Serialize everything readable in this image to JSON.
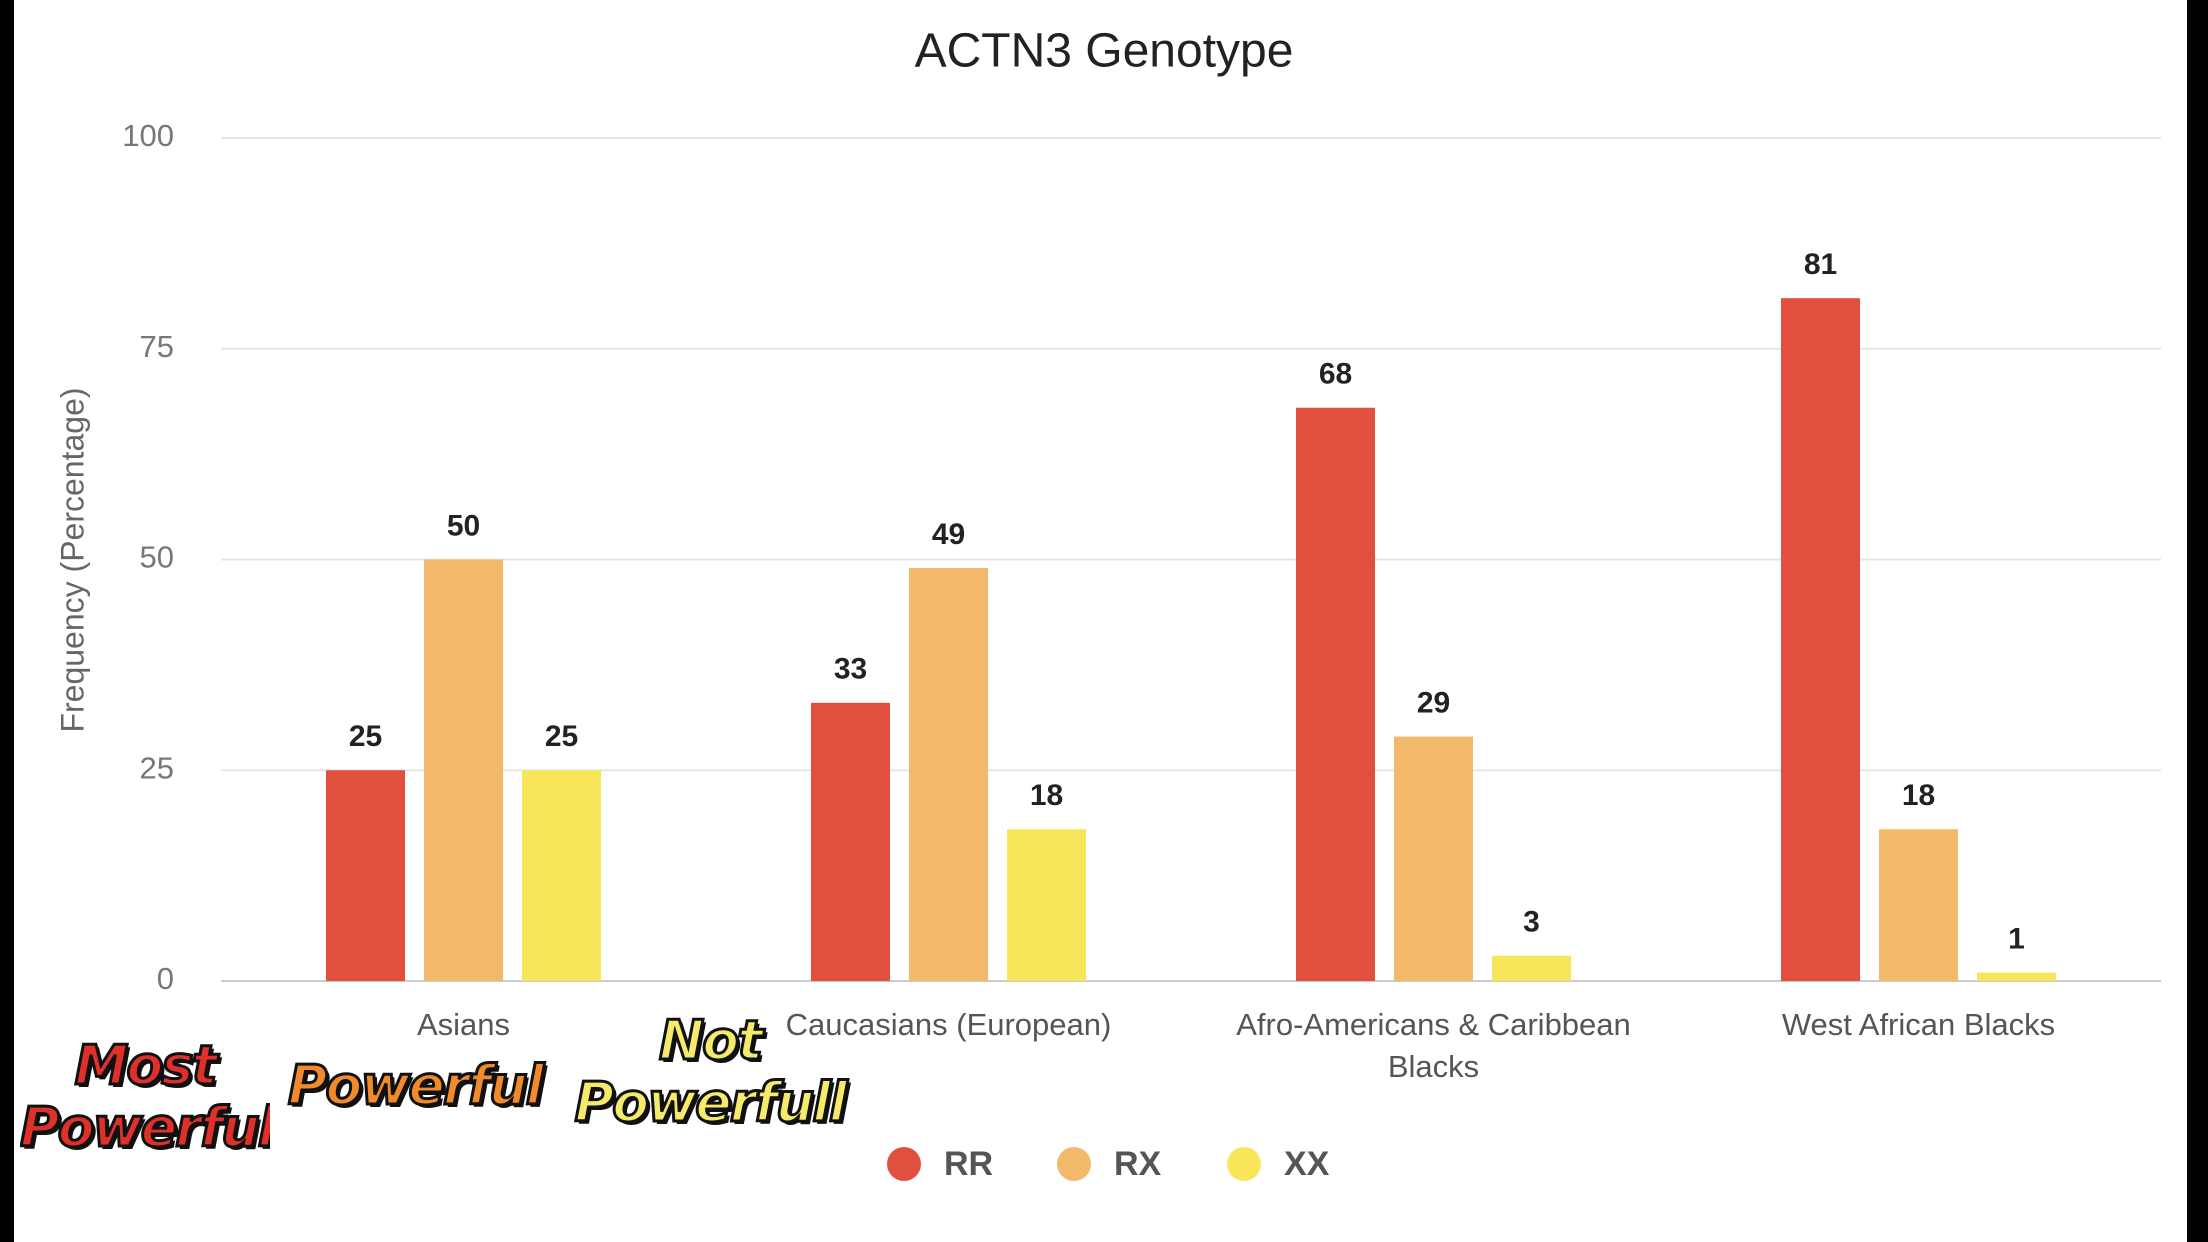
{
  "chart_data": {
    "type": "bar",
    "title": "ACTN3 Genotype",
    "y_label": "Frequency (Percentage)",
    "categories": [
      "Asians",
      "Caucasians (European)",
      "Afro-Americans & Caribbean Blacks",
      "West African Blacks"
    ],
    "series": [
      {
        "name": "RR",
        "color": "#e14f3f",
        "values": [
          25,
          33,
          68,
          81
        ]
      },
      {
        "name": "RX",
        "color": "#f2b96b",
        "values": [
          50,
          49,
          29,
          18
        ]
      },
      {
        "name": "XX",
        "color": "#f7e65a",
        "values": [
          25,
          18,
          3,
          1
        ]
      }
    ],
    "ylim": [
      0,
      100
    ],
    "yticks": [
      0,
      25,
      50,
      75,
      100
    ],
    "grid": true,
    "annotations": [
      {
        "text": "Most Powerful",
        "color": "#e0302a"
      },
      {
        "text": "Powerful",
        "color": "#f08a2a"
      },
      {
        "text": "Not Powerfull",
        "color": "#f5ea6a"
      }
    ]
  }
}
